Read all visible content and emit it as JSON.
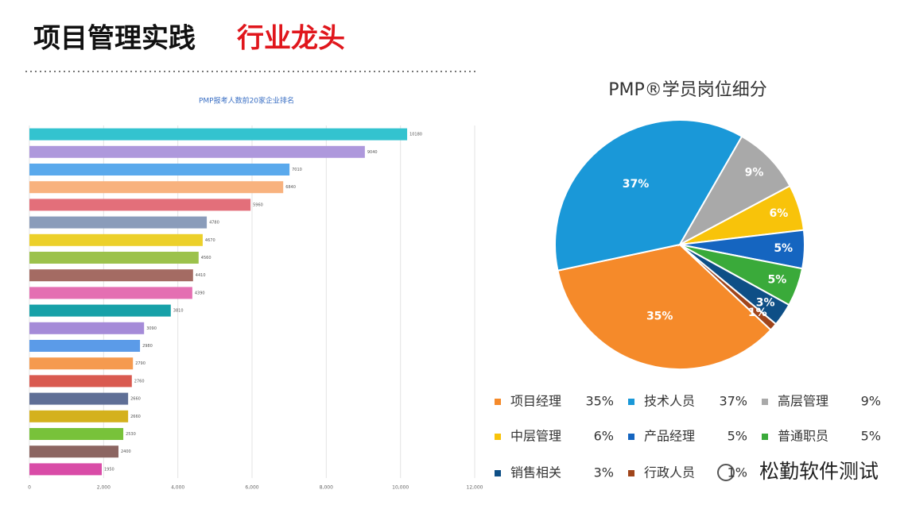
{
  "header": {
    "title": "项目管理实践",
    "highlight": "行业龙头"
  },
  "watermark": "松勤软件测试",
  "chart_data": [
    {
      "type": "barh",
      "title": "PMP报考人数前20家企业排名",
      "categories": [
        null,
        null,
        null,
        null,
        null,
        null,
        null,
        null,
        null,
        null,
        null,
        null,
        null,
        null,
        null,
        null,
        null,
        null,
        null,
        null
      ],
      "values": [
        10180,
        9040,
        7010,
        6840,
        5960,
        4780,
        4670,
        4560,
        4410,
        4390,
        3810,
        3090,
        2980,
        2790,
        2760,
        2660,
        2660,
        2530,
        2400,
        1950
      ],
      "colors": [
        "#33c3cf",
        "#ae98dc",
        "#5aa9ec",
        "#f8b27e",
        "#e36f7a",
        "#8a9cba",
        "#ecd02a",
        "#9cc24c",
        "#a46b63",
        "#e46fb2",
        "#17a1a8",
        "#a58bd8",
        "#5b9be8",
        "#f59a4f",
        "#d95a50",
        "#5f6f96",
        "#d4b11d",
        "#78c23a",
        "#8c6561",
        "#d94ca7"
      ],
      "xlim": [
        0,
        12000
      ],
      "xticks": [
        0,
        {
          "value": 2000,
          "label": "2,000"
        },
        {
          "value": 4000,
          "label": "4,000"
        },
        {
          "value": 6000,
          "label": "6,000"
        },
        {
          "value": 8000,
          "label": "8,000"
        },
        {
          "value": 10000,
          "label": "10,000"
        },
        {
          "value": 12000,
          "label": "12,000"
        }
      ],
      "grid": true
    },
    {
      "type": "pie",
      "title": "PMP®学员岗位细分",
      "categories": [
        "项目经理",
        "技术人员",
        "高层管理",
        "中层管理",
        "产品经理",
        "普通职员",
        "销售相关",
        "行政人员"
      ],
      "values": [
        35,
        37,
        9,
        6,
        5,
        5,
        3,
        1
      ],
      "value_labels": [
        "35%",
        "37%",
        "9%",
        "6%",
        "5%",
        "5%",
        "3%",
        "1%"
      ],
      "colors": [
        "#f58a2a",
        "#1a98d8",
        "#a9a9a9",
        "#f8c30a",
        "#1565c0",
        "#3aaa3a",
        "#0e4f86",
        "#a0451b"
      ],
      "legend": "bottom"
    }
  ]
}
